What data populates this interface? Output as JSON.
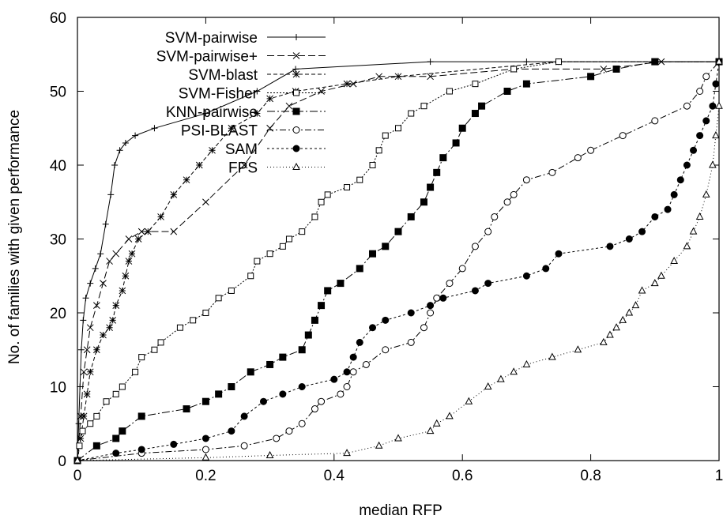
{
  "chart_data": {
    "type": "line",
    "title": "",
    "xlabel": "median RFP",
    "ylabel": "No. of families with given performance",
    "xlim": [
      0,
      1
    ],
    "ylim": [
      0,
      60
    ],
    "xticks": [
      "0",
      "0.2",
      "0.4",
      "0.6",
      "0.8",
      "1"
    ],
    "yticks": [
      "0",
      "10",
      "20",
      "30",
      "40",
      "50",
      "60"
    ],
    "grid": false,
    "legend_position": "top-left",
    "series": [
      {
        "name": "SVM-pairwise",
        "marker": "plus",
        "dash": "",
        "points": [
          [
            0,
            0
          ],
          [
            0.002,
            5
          ],
          [
            0.004,
            10
          ],
          [
            0.006,
            15
          ],
          [
            0.009,
            19
          ],
          [
            0.013,
            22
          ],
          [
            0.02,
            24
          ],
          [
            0.028,
            26
          ],
          [
            0.036,
            28
          ],
          [
            0.044,
            32
          ],
          [
            0.052,
            36
          ],
          [
            0.058,
            40
          ],
          [
            0.066,
            42
          ],
          [
            0.075,
            43
          ],
          [
            0.09,
            44
          ],
          [
            0.12,
            45
          ],
          [
            0.2,
            47
          ],
          [
            0.28,
            50
          ],
          [
            0.34,
            53
          ],
          [
            0.55,
            54
          ],
          [
            0.7,
            54
          ],
          [
            1,
            54
          ]
        ]
      },
      {
        "name": "SVM-pairwise+",
        "marker": "x",
        "dash": "9,4",
        "points": [
          [
            0,
            0
          ],
          [
            0.005,
            6
          ],
          [
            0.01,
            12
          ],
          [
            0.015,
            15
          ],
          [
            0.02,
            18
          ],
          [
            0.03,
            21
          ],
          [
            0.04,
            24
          ],
          [
            0.05,
            27
          ],
          [
            0.06,
            28
          ],
          [
            0.08,
            30
          ],
          [
            0.1,
            31
          ],
          [
            0.15,
            31
          ],
          [
            0.2,
            35
          ],
          [
            0.26,
            40
          ],
          [
            0.3,
            45
          ],
          [
            0.33,
            48
          ],
          [
            0.38,
            50
          ],
          [
            0.43,
            51
          ],
          [
            0.47,
            52
          ],
          [
            0.55,
            52
          ],
          [
            0.68,
            53
          ],
          [
            0.82,
            53
          ],
          [
            0.91,
            54
          ],
          [
            1,
            54
          ]
        ]
      },
      {
        "name": "SVM-blast",
        "marker": "asterisk",
        "dash": "5,3",
        "points": [
          [
            0,
            0
          ],
          [
            0.005,
            3
          ],
          [
            0.01,
            6
          ],
          [
            0.015,
            9
          ],
          [
            0.02,
            12
          ],
          [
            0.03,
            15
          ],
          [
            0.04,
            17
          ],
          [
            0.05,
            18
          ],
          [
            0.055,
            19
          ],
          [
            0.06,
            21
          ],
          [
            0.07,
            23
          ],
          [
            0.075,
            25
          ],
          [
            0.08,
            27
          ],
          [
            0.085,
            28
          ],
          [
            0.095,
            30
          ],
          [
            0.11,
            31
          ],
          [
            0.13,
            33
          ],
          [
            0.15,
            36
          ],
          [
            0.17,
            38
          ],
          [
            0.19,
            40
          ],
          [
            0.21,
            42
          ],
          [
            0.24,
            45
          ],
          [
            0.28,
            47
          ],
          [
            0.3,
            49
          ],
          [
            0.34,
            50
          ],
          [
            0.42,
            51
          ],
          [
            0.5,
            52
          ],
          [
            0.75,
            54
          ],
          [
            1,
            54
          ]
        ]
      },
      {
        "name": "SVM-Fisher",
        "marker": "square-open",
        "dash": "2,2",
        "points": [
          [
            0,
            0
          ],
          [
            0.003,
            2
          ],
          [
            0.008,
            4
          ],
          [
            0.02,
            5
          ],
          [
            0.03,
            6
          ],
          [
            0.045,
            8
          ],
          [
            0.06,
            9
          ],
          [
            0.07,
            10
          ],
          [
            0.09,
            12
          ],
          [
            0.1,
            14
          ],
          [
            0.12,
            15
          ],
          [
            0.13,
            16
          ],
          [
            0.16,
            18
          ],
          [
            0.18,
            19
          ],
          [
            0.2,
            20
          ],
          [
            0.22,
            22
          ],
          [
            0.24,
            23
          ],
          [
            0.27,
            25
          ],
          [
            0.28,
            27
          ],
          [
            0.3,
            28
          ],
          [
            0.32,
            29
          ],
          [
            0.33,
            30
          ],
          [
            0.35,
            31
          ],
          [
            0.37,
            33
          ],
          [
            0.38,
            35
          ],
          [
            0.39,
            36
          ],
          [
            0.42,
            37
          ],
          [
            0.44,
            38
          ],
          [
            0.46,
            40
          ],
          [
            0.47,
            42
          ],
          [
            0.48,
            44
          ],
          [
            0.5,
            45
          ],
          [
            0.52,
            47
          ],
          [
            0.54,
            48
          ],
          [
            0.58,
            50
          ],
          [
            0.62,
            51
          ],
          [
            0.68,
            53
          ],
          [
            0.75,
            54
          ],
          [
            1,
            54
          ]
        ]
      },
      {
        "name": "KNN-pairwise",
        "marker": "square-filled",
        "dash": "10,3,2,3",
        "points": [
          [
            0,
            0
          ],
          [
            0.03,
            2
          ],
          [
            0.06,
            3
          ],
          [
            0.07,
            4
          ],
          [
            0.1,
            6
          ],
          [
            0.17,
            7
          ],
          [
            0.2,
            8
          ],
          [
            0.22,
            9
          ],
          [
            0.24,
            10
          ],
          [
            0.27,
            12
          ],
          [
            0.3,
            13
          ],
          [
            0.32,
            14
          ],
          [
            0.35,
            15
          ],
          [
            0.36,
            17
          ],
          [
            0.37,
            19
          ],
          [
            0.38,
            21
          ],
          [
            0.39,
            23
          ],
          [
            0.41,
            24
          ],
          [
            0.44,
            26
          ],
          [
            0.46,
            28
          ],
          [
            0.48,
            29
          ],
          [
            0.5,
            31
          ],
          [
            0.52,
            33
          ],
          [
            0.54,
            35
          ],
          [
            0.55,
            37
          ],
          [
            0.56,
            39
          ],
          [
            0.57,
            41
          ],
          [
            0.59,
            43
          ],
          [
            0.6,
            45
          ],
          [
            0.62,
            47
          ],
          [
            0.63,
            48
          ],
          [
            0.67,
            50
          ],
          [
            0.7,
            51
          ],
          [
            0.8,
            52
          ],
          [
            0.84,
            53
          ],
          [
            0.9,
            54
          ],
          [
            1,
            54
          ]
        ]
      },
      {
        "name": "PSI-BLAST",
        "marker": "circle-open",
        "dash": "8,3,2,3",
        "points": [
          [
            0,
            0
          ],
          [
            0.1,
            1
          ],
          [
            0.2,
            1.5
          ],
          [
            0.26,
            2
          ],
          [
            0.31,
            3
          ],
          [
            0.33,
            4
          ],
          [
            0.35,
            5
          ],
          [
            0.37,
            7
          ],
          [
            0.38,
            8
          ],
          [
            0.41,
            9
          ],
          [
            0.42,
            10
          ],
          [
            0.43,
            12
          ],
          [
            0.45,
            13
          ],
          [
            0.48,
            15
          ],
          [
            0.52,
            16
          ],
          [
            0.54,
            18
          ],
          [
            0.55,
            20
          ],
          [
            0.56,
            22
          ],
          [
            0.58,
            24
          ],
          [
            0.6,
            26
          ],
          [
            0.62,
            29
          ],
          [
            0.64,
            31
          ],
          [
            0.65,
            33
          ],
          [
            0.67,
            35
          ],
          [
            0.68,
            36
          ],
          [
            0.7,
            38
          ],
          [
            0.74,
            39
          ],
          [
            0.78,
            41
          ],
          [
            0.8,
            42
          ],
          [
            0.85,
            44
          ],
          [
            0.9,
            46
          ],
          [
            0.95,
            48
          ],
          [
            0.97,
            50
          ],
          [
            0.98,
            52
          ],
          [
            1,
            54
          ]
        ]
      },
      {
        "name": "SAM",
        "marker": "circle-filled",
        "dash": "3,3",
        "points": [
          [
            0,
            0
          ],
          [
            0.06,
            1
          ],
          [
            0.1,
            1.5
          ],
          [
            0.15,
            2.2
          ],
          [
            0.2,
            3
          ],
          [
            0.24,
            4
          ],
          [
            0.26,
            6
          ],
          [
            0.29,
            8
          ],
          [
            0.32,
            9
          ],
          [
            0.35,
            10
          ],
          [
            0.4,
            11
          ],
          [
            0.42,
            12
          ],
          [
            0.43,
            14
          ],
          [
            0.44,
            16
          ],
          [
            0.46,
            18
          ],
          [
            0.48,
            19
          ],
          [
            0.52,
            20
          ],
          [
            0.55,
            21
          ],
          [
            0.57,
            22
          ],
          [
            0.62,
            23
          ],
          [
            0.64,
            24
          ],
          [
            0.7,
            25
          ],
          [
            0.73,
            26
          ],
          [
            0.75,
            28
          ],
          [
            0.83,
            29
          ],
          [
            0.86,
            30
          ],
          [
            0.88,
            31
          ],
          [
            0.9,
            33
          ],
          [
            0.92,
            34
          ],
          [
            0.93,
            36
          ],
          [
            0.94,
            38
          ],
          [
            0.95,
            40
          ],
          [
            0.96,
            42
          ],
          [
            0.97,
            44
          ],
          [
            0.98,
            46
          ],
          [
            0.99,
            48
          ],
          [
            0.995,
            51
          ],
          [
            1,
            54
          ]
        ]
      },
      {
        "name": "FPS",
        "marker": "triangle-open",
        "dash": "1,3",
        "points": [
          [
            0,
            0
          ],
          [
            0.2,
            0.4
          ],
          [
            0.3,
            0.7
          ],
          [
            0.42,
            1
          ],
          [
            0.47,
            2
          ],
          [
            0.5,
            3
          ],
          [
            0.55,
            4
          ],
          [
            0.56,
            5
          ],
          [
            0.58,
            6
          ],
          [
            0.61,
            8
          ],
          [
            0.64,
            10
          ],
          [
            0.66,
            11
          ],
          [
            0.68,
            12
          ],
          [
            0.7,
            13
          ],
          [
            0.74,
            14
          ],
          [
            0.78,
            15
          ],
          [
            0.82,
            16
          ],
          [
            0.83,
            17
          ],
          [
            0.84,
            18
          ],
          [
            0.85,
            19
          ],
          [
            0.86,
            20
          ],
          [
            0.87,
            21
          ],
          [
            0.88,
            23
          ],
          [
            0.9,
            24
          ],
          [
            0.91,
            25
          ],
          [
            0.93,
            27
          ],
          [
            0.95,
            29
          ],
          [
            0.96,
            31
          ],
          [
            0.97,
            33
          ],
          [
            0.98,
            36
          ],
          [
            0.99,
            40
          ],
          [
            0.995,
            44
          ],
          [
            1,
            48
          ],
          [
            1,
            54
          ]
        ]
      }
    ]
  }
}
